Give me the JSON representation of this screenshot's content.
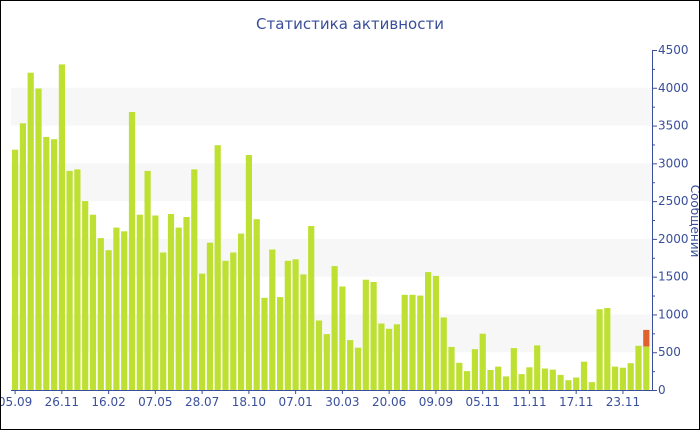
{
  "chart_data": {
    "type": "bar",
    "stacked": true,
    "title": "Статистика активности",
    "ylabel": "Сообщений",
    "xlabel": "",
    "ylim": [
      0,
      4500
    ],
    "y_ticks": [
      0,
      500,
      1000,
      1500,
      2000,
      2500,
      3000,
      3500,
      4000,
      4500
    ],
    "y_axis_side": "right",
    "grid": "alternating horizontal bands",
    "categories": [
      "05.09",
      "",
      "",
      "",
      "",
      "",
      "26.11",
      "",
      "",
      "",
      "",
      "",
      "16.02",
      "",
      "",
      "",
      "",
      "",
      "07.05",
      "",
      "",
      "",
      "",
      "",
      "28.07",
      "",
      "",
      "",
      "",
      "",
      "18.10",
      "",
      "",
      "",
      "",
      "",
      "07.01",
      "",
      "",
      "",
      "",
      "",
      "30.03",
      "",
      "",
      "",
      "",
      "",
      "20.06",
      "",
      "",
      "",
      "",
      "",
      "09.09",
      "",
      "",
      "",
      "",
      "",
      "05.11",
      "",
      "",
      "",
      "",
      "",
      "11.11",
      "",
      "",
      "",
      "",
      "",
      "17.11",
      "",
      "",
      "",
      "",
      "",
      "23.11",
      "",
      "",
      ""
    ],
    "series": [
      {
        "color": "#bde032",
        "values": [
          3180,
          3530,
          4200,
          3990,
          3350,
          3320,
          4310,
          2900,
          2920,
          2500,
          2320,
          2010,
          1850,
          2150,
          2100,
          3680,
          2320,
          2900,
          2310,
          1820,
          2330,
          2150,
          2290,
          2920,
          1540,
          1950,
          3240,
          1710,
          1820,
          2070,
          3110,
          2260,
          1220,
          1860,
          1230,
          1710,
          1730,
          1530,
          2170,
          920,
          740,
          1640,
          1370,
          660,
          560,
          1460,
          1430,
          880,
          810,
          870,
          1260,
          1260,
          1250,
          1560,
          1510,
          960,
          570,
          360,
          250,
          540,
          745,
          265,
          310,
          180,
          555,
          210,
          300,
          590,
          285,
          270,
          200,
          130,
          165,
          375,
          105,
          1070,
          1085,
          310,
          295,
          355,
          585,
          575
        ]
      },
      {
        "color": "#e0632e",
        "values": [
          0,
          0,
          0,
          0,
          0,
          0,
          0,
          0,
          0,
          0,
          0,
          0,
          0,
          0,
          0,
          0,
          0,
          0,
          0,
          0,
          0,
          0,
          0,
          0,
          0,
          0,
          0,
          0,
          0,
          0,
          0,
          0,
          0,
          0,
          0,
          0,
          0,
          0,
          0,
          0,
          0,
          0,
          0,
          0,
          0,
          0,
          0,
          0,
          0,
          0,
          0,
          0,
          0,
          0,
          0,
          0,
          0,
          0,
          0,
          0,
          0,
          0,
          0,
          0,
          0,
          0,
          0,
          0,
          0,
          0,
          0,
          0,
          0,
          0,
          0,
          0,
          0,
          0,
          0,
          0,
          0,
          220
        ]
      }
    ],
    "axis_color": "#3a4f9a",
    "band_color": "#f7f7f7"
  }
}
